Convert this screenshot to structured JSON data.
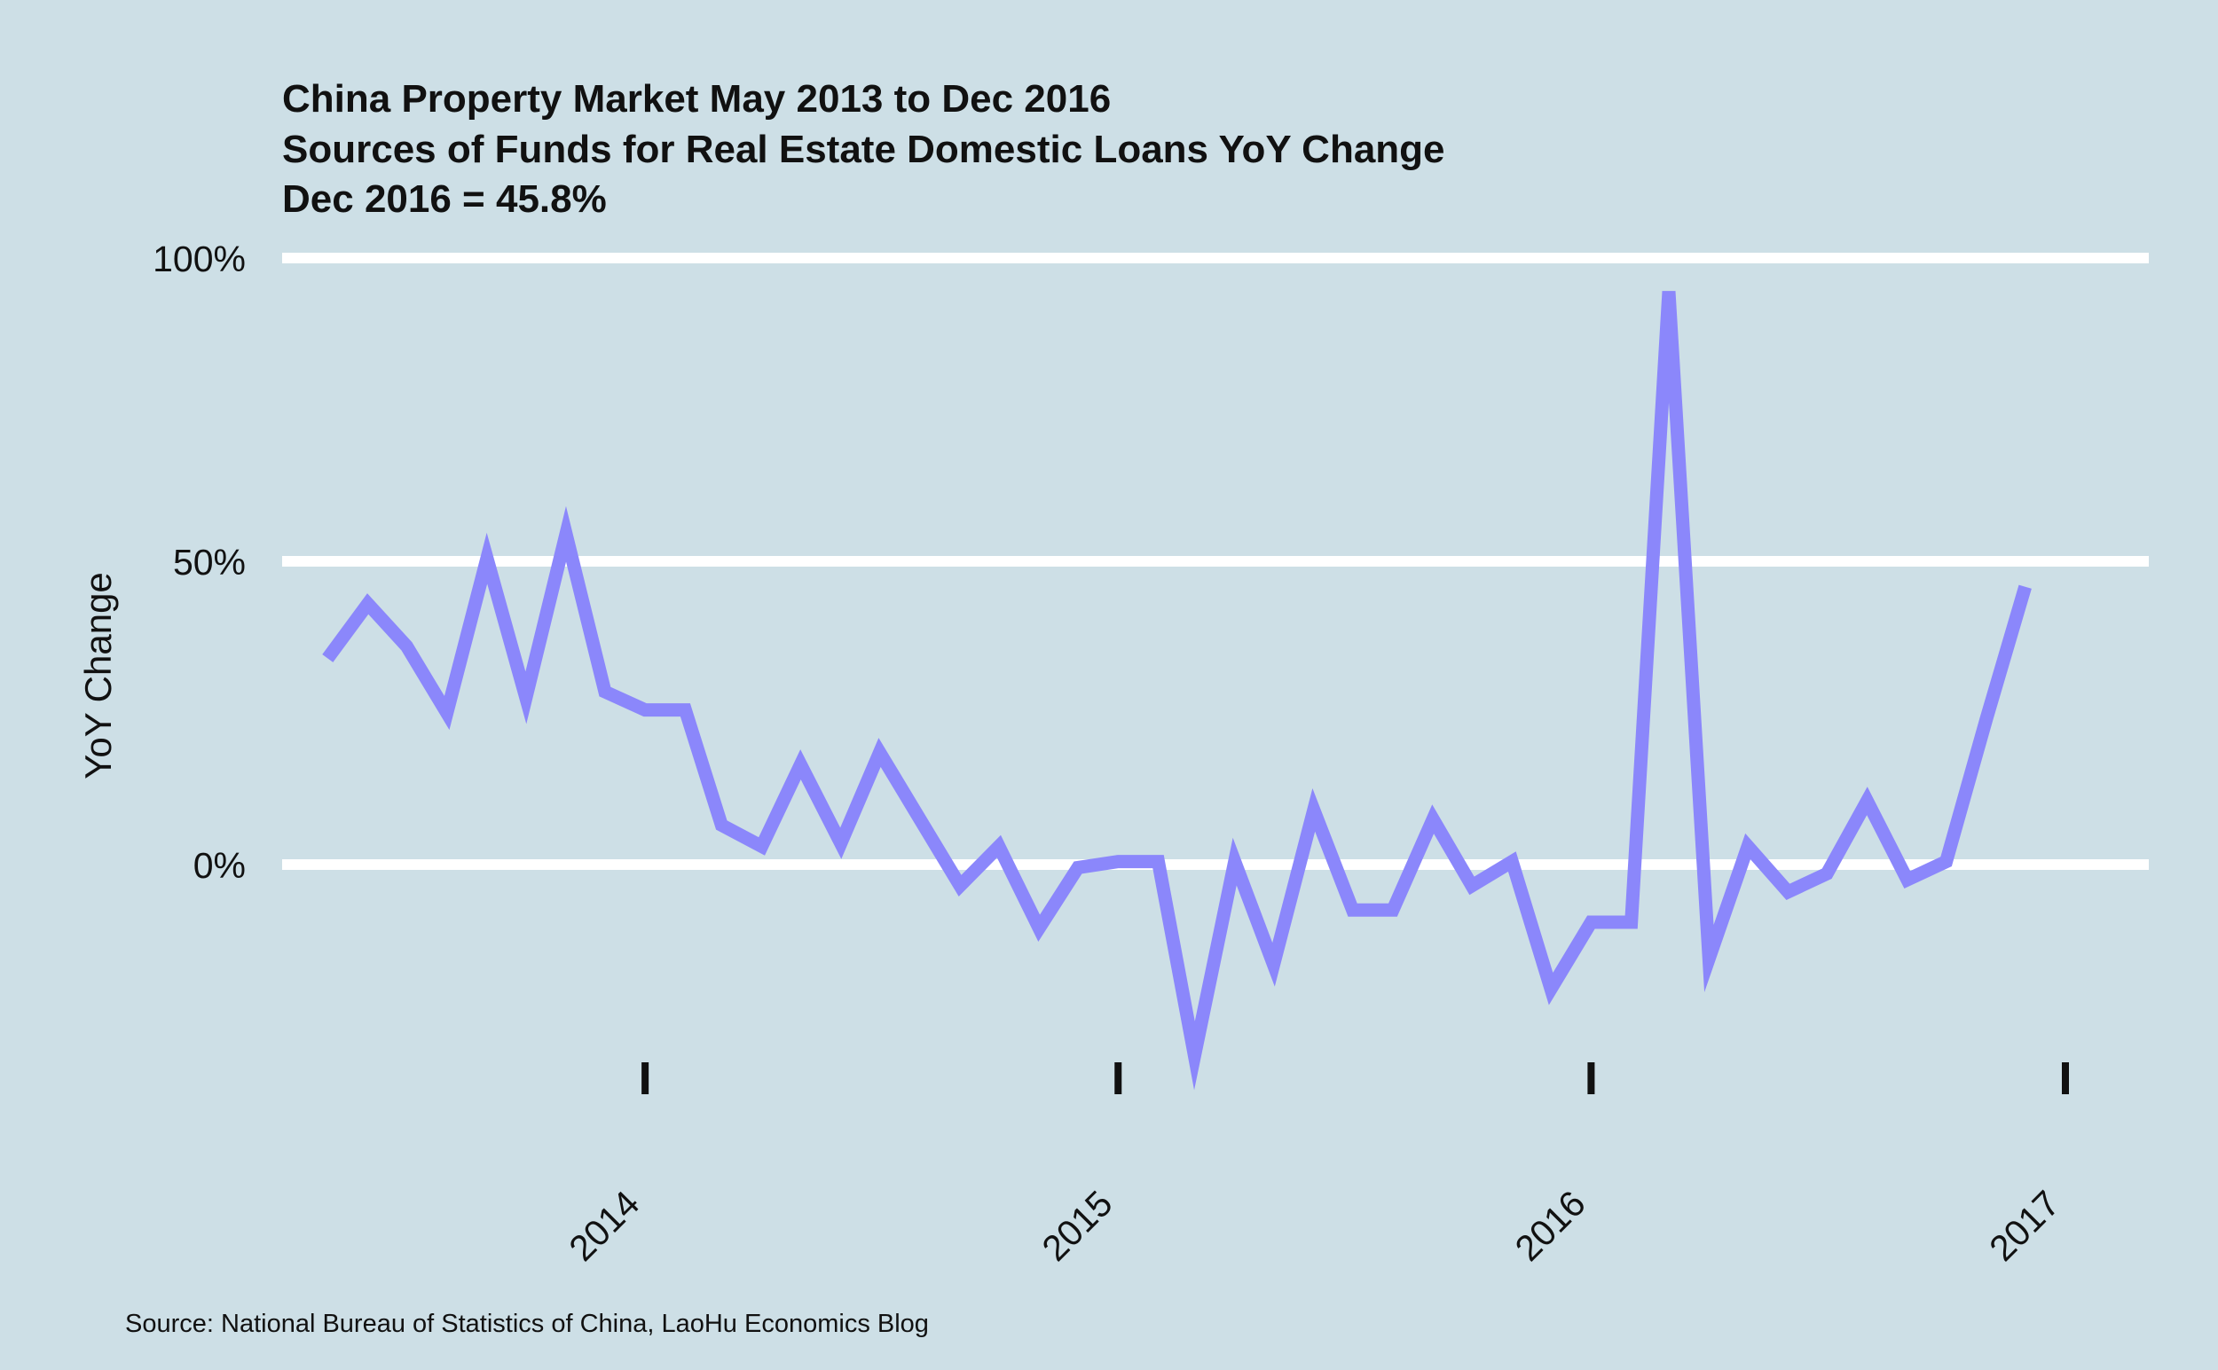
{
  "chart_data": {
    "type": "line",
    "title_lines": [
      "China Property Market May 2013 to Dec 2016",
      "Sources of Funds for Real Estate Domestic Loans YoY Change",
      "Dec 2016 = 45.8%"
    ],
    "xlabel": "",
    "ylabel": "YoY Change",
    "caption": "Source: National Bureau of Statistics of China, LaoHu Economics Blog",
    "xlim": [
      "2013-04-01",
      "2017-03-01"
    ],
    "ylim": [
      -42,
      100
    ],
    "x_ticks": [
      {
        "value": "2014-01-01",
        "label": "2014"
      },
      {
        "value": "2015-01-01",
        "label": "2015"
      },
      {
        "value": "2016-01-01",
        "label": "2016"
      },
      {
        "value": "2017-01-01",
        "label": "2017"
      }
    ],
    "y_ticks": [
      {
        "value": 0,
        "label": "0%"
      },
      {
        "value": 50,
        "label": "50%"
      },
      {
        "value": 100,
        "label": "100%"
      }
    ],
    "grid": "horizontal",
    "line_color": "#8b87fb",
    "background_color": "#cddfe6",
    "grid_color": "#ffffff",
    "series": [
      {
        "x": [
          "2013-05",
          "2013-06",
          "2013-07",
          "2013-08",
          "2013-09",
          "2013-10",
          "2013-11",
          "2013-12",
          "2014-01",
          "2014-02",
          "2014-03",
          "2014-04",
          "2014-05",
          "2014-06",
          "2014-07",
          "2014-08",
          "2014-09",
          "2014-10",
          "2014-11",
          "2014-12",
          "2015-01",
          "2015-02",
          "2015-03",
          "2015-04",
          "2015-05",
          "2015-06",
          "2015-07",
          "2015-08",
          "2015-09",
          "2015-10",
          "2015-11",
          "2015-12",
          "2016-01",
          "2016-02",
          "2016-03",
          "2016-04",
          "2016-05",
          "2016-06",
          "2016-07",
          "2016-08",
          "2016-09",
          "2016-10",
          "2016-11",
          "2016-12"
        ],
        "values": [
          34,
          43,
          36,
          25,
          50.5,
          27.5,
          54.5,
          28.5,
          25.5,
          25.5,
          6.5,
          3,
          16.5,
          3.5,
          18.5,
          7.5,
          -3.5,
          3,
          -10.5,
          -0.5,
          0.5,
          0.5,
          -31.5,
          0.5,
          -16.5,
          9,
          -7.5,
          -7.5,
          7.5,
          -3.5,
          0.5,
          -20.5,
          -9.5,
          -9.5,
          94.5,
          -15.5,
          3,
          -4.5,
          -1.5,
          10.5,
          -2.5,
          0.5,
          24,
          45.8
        ]
      }
    ]
  }
}
